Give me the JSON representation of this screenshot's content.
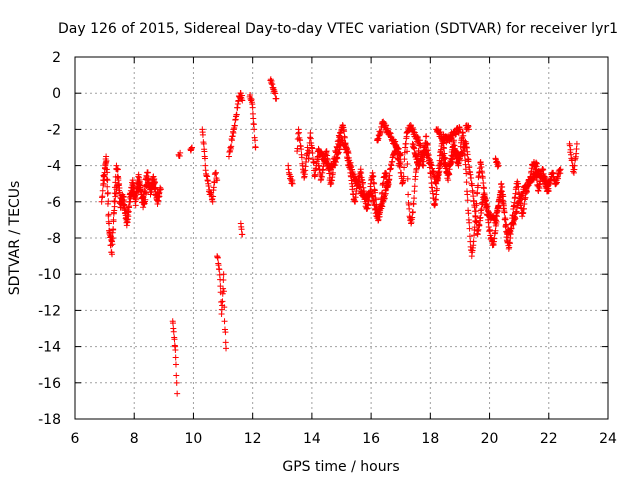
{
  "chart_data": {
    "type": "scatter",
    "title": "Day 126 of 2015, Sidereal Day-to-day VTEC variation (SDTVAR) for receiver lyr1",
    "xlabel": "GPS time / hours",
    "ylabel": "SDTVAR / TECUs",
    "xlim": [
      6,
      24
    ],
    "ylim": [
      -18,
      2
    ],
    "xticks": [
      6,
      8,
      10,
      12,
      14,
      16,
      18,
      20,
      22,
      24
    ],
    "yticks": [
      2,
      0,
      -2,
      -4,
      -6,
      -8,
      -10,
      -12,
      -14,
      -16,
      -18
    ],
    "grid": true,
    "marker": "+",
    "color": "#ff0000",
    "segments": [
      {
        "x": [
          6.9,
          7.0,
          7.05,
          7.1,
          7.15,
          7.2,
          7.25,
          7.3,
          7.35,
          7.4,
          7.45,
          7.5,
          7.55,
          7.6,
          7.65,
          7.7,
          7.75,
          7.8,
          7.85,
          7.9,
          7.95,
          8.0,
          8.05,
          8.1,
          8.15,
          8.2,
          8.25,
          8.3,
          8.35,
          8.4,
          8.45,
          8.5,
          8.55,
          8.6,
          8.65,
          8.7,
          8.75,
          8.8,
          8.85,
          8.9
        ],
        "y": [
          -6.0,
          -4.5,
          -3.5,
          -4.8,
          -7.2,
          -8.4,
          -8.9,
          -7.0,
          -5.2,
          -4.0,
          -4.2,
          -6.0,
          -6.3,
          -5.6,
          -5.9,
          -6.6,
          -7.3,
          -6.8,
          -5.6,
          -5.2,
          -4.8,
          -5.3,
          -6.2,
          -5.0,
          -4.5,
          -5.1,
          -5.8,
          -6.3,
          -5.4,
          -4.7,
          -4.4,
          -5.0,
          -5.6,
          -5.2,
          -4.9,
          -5.3,
          -5.8,
          -6.0,
          -5.5,
          -5.3
        ]
      },
      {
        "x": [
          6.95,
          7.05,
          7.15,
          7.25,
          7.35,
          7.45,
          7.55,
          7.65,
          7.75,
          7.85,
          7.95,
          8.05,
          8.15,
          8.25,
          8.35,
          8.45,
          8.55,
          8.65,
          8.75,
          8.85
        ],
        "y": [
          -4.8,
          -3.8,
          -7.6,
          -8.2,
          -6.0,
          -4.6,
          -5.8,
          -6.2,
          -7.0,
          -6.0,
          -5.4,
          -5.8,
          -4.9,
          -5.6,
          -6.1,
          -4.8,
          -5.3,
          -4.6,
          -5.6,
          -5.7
        ]
      },
      {
        "x": [
          9.3,
          9.32,
          9.35,
          9.38,
          9.4,
          9.42,
          9.45
        ],
        "y": [
          -12.6,
          -13.0,
          -13.5,
          -14.0,
          -14.6,
          -15.6,
          -16.6
        ]
      },
      {
        "x": [
          9.5,
          9.55,
          9.9,
          9.95
        ],
        "y": [
          -3.4,
          -3.3,
          -3.1,
          -3.0
        ]
      },
      {
        "x": [
          10.3,
          10.32,
          10.35,
          10.38,
          10.4,
          10.45,
          10.5,
          10.55,
          10.6,
          10.65,
          10.7,
          10.75,
          10.8
        ],
        "y": [
          -2.0,
          -2.3,
          -2.8,
          -3.5,
          -4.0,
          -4.6,
          -5.0,
          -5.6,
          -5.5,
          -6.0,
          -4.9,
          -4.4,
          -4.8
        ]
      },
      {
        "x": [
          10.8,
          10.85,
          10.9,
          10.92,
          10.95,
          10.98,
          11.0,
          11.02,
          11.05,
          11.08,
          11.1
        ],
        "y": [
          -9.0,
          -9.5,
          -10.3,
          -11.0,
          -12.2,
          -11.5,
          -10.8,
          -10.0,
          -12.6,
          -13.2,
          -14.1
        ]
      },
      {
        "x": [
          11.2,
          11.25,
          11.3,
          11.35,
          11.4,
          11.45,
          11.5,
          11.55,
          11.6,
          11.65
        ],
        "y": [
          -3.5,
          -3.0,
          -2.6,
          -2.2,
          -1.8,
          -1.2,
          -0.6,
          -0.2,
          0.0,
          -0.4
        ]
      },
      {
        "x": [
          11.6,
          11.65
        ],
        "y": [
          -7.2,
          -7.8
        ]
      },
      {
        "x": [
          11.9,
          11.95,
          12.0,
          12.02,
          12.05,
          12.08,
          12.1
        ],
        "y": [
          -0.2,
          -0.4,
          -0.8,
          -1.4,
          -2.0,
          -2.6,
          -3.0
        ]
      },
      {
        "x": [
          12.6,
          12.65,
          12.7,
          12.75,
          12.8
        ],
        "y": [
          0.7,
          0.5,
          0.3,
          0.0,
          -0.3
        ]
      },
      {
        "x": [
          13.2,
          13.25,
          13.3,
          13.35
        ],
        "y": [
          -4.0,
          -4.5,
          -4.8,
          -5.0
        ]
      },
      {
        "x": [
          13.5,
          13.55,
          13.6,
          13.65,
          13.7,
          13.75,
          13.8,
          13.85,
          13.9,
          13.95,
          14.0,
          14.05,
          14.1,
          14.15,
          14.2,
          14.25,
          14.3,
          14.35,
          14.4,
          14.45,
          14.5,
          14.55,
          14.6,
          14.65,
          14.7,
          14.75,
          14.8,
          14.85,
          14.9,
          14.95,
          15.0,
          15.05,
          15.1,
          15.15,
          15.2,
          15.25,
          15.3,
          15.35,
          15.4,
          15.45,
          15.5,
          15.55,
          15.6,
          15.65,
          15.7,
          15.75,
          15.8,
          15.85,
          15.9,
          15.95,
          16.0,
          16.05,
          16.1,
          16.15,
          16.2,
          16.25,
          16.3,
          16.35,
          16.4,
          16.45,
          16.5,
          16.55,
          16.6,
          16.65,
          16.7,
          16.75,
          16.8,
          16.85,
          16.9,
          16.95,
          17.0
        ],
        "y": [
          -3.2,
          -2.0,
          -2.6,
          -3.4,
          -4.2,
          -4.6,
          -3.8,
          -3.0,
          -3.6,
          -2.2,
          -3.0,
          -3.8,
          -4.6,
          -4.0,
          -3.5,
          -4.2,
          -4.8,
          -4.4,
          -3.9,
          -3.6,
          -3.2,
          -4.0,
          -4.8,
          -5.0,
          -4.5,
          -3.6,
          -3.2,
          -3.0,
          -2.6,
          -2.2,
          -2.0,
          -1.8,
          -2.4,
          -3.0,
          -3.6,
          -4.0,
          -4.4,
          -5.0,
          -5.6,
          -6.0,
          -5.4,
          -5.0,
          -4.6,
          -4.2,
          -4.8,
          -5.4,
          -6.0,
          -6.4,
          -6.2,
          -5.6,
          -4.8,
          -4.4,
          -5.0,
          -5.8,
          -6.6,
          -7.0,
          -6.6,
          -5.8,
          -5.0,
          -4.6,
          -4.4,
          -5.2,
          -4.8,
          -4.2,
          -3.8,
          -3.4,
          -3.2,
          -3.0,
          -3.6,
          -4.0,
          -3.8
        ]
      },
      {
        "x": [
          14.2,
          14.4,
          14.6,
          14.8,
          15.0,
          15.2,
          15.4,
          15.6,
          15.8,
          16.0,
          16.2,
          16.4,
          16.6
        ],
        "y": [
          -3.2,
          -3.6,
          -4.2,
          -3.8,
          -2.6,
          -3.2,
          -4.6,
          -5.2,
          -5.8,
          -5.4,
          -6.8,
          -6.0,
          -4.8
        ]
      },
      {
        "x": [
          16.2,
          16.4,
          16.6,
          16.8,
          17.0
        ],
        "y": [
          -2.6,
          -1.6,
          -2.2,
          -2.8,
          -3.4
        ]
      },
      {
        "x": [
          17.0,
          17.05,
          17.1,
          17.15,
          17.2,
          17.25,
          17.3,
          17.35,
          17.4,
          17.45,
          17.5,
          17.55,
          17.6,
          17.65,
          17.7,
          17.75,
          17.8,
          17.85,
          17.9,
          17.95,
          18.0,
          18.05,
          18.1,
          18.15,
          18.2,
          18.25,
          18.3,
          18.35,
          18.4,
          18.45,
          18.5,
          18.55,
          18.6,
          18.65,
          18.7,
          18.75,
          18.8,
          18.85,
          18.9,
          18.95,
          19.0,
          19.05,
          19.1,
          19.15,
          19.2,
          19.25,
          19.3,
          19.35,
          19.4,
          19.45,
          19.5,
          19.55,
          19.6,
          19.65,
          19.7,
          19.75,
          19.8,
          19.85,
          19.9,
          19.95,
          20.0,
          20.05,
          20.1,
          20.15,
          20.2,
          20.25,
          20.3,
          20.35,
          20.4,
          20.45,
          20.5,
          20.55,
          20.6,
          20.65,
          20.7,
          20.75,
          20.8,
          20.85,
          20.9,
          20.95,
          21.0,
          21.05,
          21.1,
          21.15,
          21.2,
          21.25,
          21.3,
          21.35,
          21.4,
          21.45,
          21.5,
          21.55,
          21.6,
          21.65,
          21.7,
          21.75,
          21.8,
          21.85,
          21.9,
          21.95,
          22.0,
          22.05,
          22.1,
          22.15,
          22.2,
          22.25,
          22.3,
          22.35,
          22.4
        ],
        "y": [
          -4.4,
          -5.0,
          -4.6,
          -3.0,
          -2.4,
          -5.6,
          -6.8,
          -7.2,
          -6.6,
          -5.8,
          -4.6,
          -3.8,
          -3.2,
          -2.6,
          -3.4,
          -4.0,
          -3.4,
          -2.4,
          -2.8,
          -3.6,
          -4.4,
          -5.2,
          -5.8,
          -6.2,
          -5.6,
          -4.8,
          -4.0,
          -3.2,
          -2.6,
          -3.0,
          -3.6,
          -4.4,
          -4.8,
          -4.2,
          -3.6,
          -3.0,
          -2.6,
          -3.2,
          -3.8,
          -4.0,
          -3.4,
          -2.6,
          -2.2,
          -3.0,
          -4.2,
          -5.6,
          -7.0,
          -8.2,
          -9.0,
          -8.4,
          -7.4,
          -6.2,
          -5.2,
          -4.4,
          -3.8,
          -4.4,
          -5.2,
          -5.8,
          -6.4,
          -7.0,
          -7.6,
          -8.0,
          -8.4,
          -8.2,
          -7.6,
          -6.8,
          -6.2,
          -5.6,
          -5.0,
          -5.6,
          -6.6,
          -7.4,
          -8.2,
          -8.6,
          -8.0,
          -7.2,
          -6.4,
          -5.8,
          -5.2,
          -5.0,
          -5.6,
          -6.2,
          -6.8,
          -6.4,
          -5.8,
          -5.4,
          -5.0,
          -4.8,
          -4.4,
          -4.0,
          -3.8,
          -4.2,
          -4.8,
          -5.4,
          -5.0,
          -4.6,
          -4.2,
          -4.6,
          -5.0,
          -5.4,
          -5.0,
          -4.8,
          -4.6,
          -4.4,
          -4.8,
          -5.0,
          -4.6,
          -4.4,
          -4.2
        ]
      },
      {
        "x": [
          17.4,
          17.6,
          17.8,
          18.0,
          18.2,
          18.4,
          18.6,
          18.8,
          19.0,
          19.2,
          19.4,
          19.6,
          19.8,
          20.0,
          20.2,
          20.4,
          20.6,
          20.8,
          21.0,
          21.2,
          21.4,
          21.6,
          21.8,
          22.0
        ],
        "y": [
          -2.8,
          -4.0,
          -3.0,
          -3.8,
          -5.0,
          -3.4,
          -4.4,
          -3.2,
          -3.6,
          -2.8,
          -5.0,
          -7.8,
          -5.6,
          -6.8,
          -7.0,
          -5.4,
          -7.8,
          -7.2,
          -6.0,
          -5.2,
          -4.8,
          -4.4,
          -4.6,
          -5.4
        ]
      },
      {
        "x": [
          17.2,
          17.3,
          17.4,
          17.5,
          17.6
        ],
        "y": [
          -2.2,
          -1.8,
          -2.0,
          -2.4,
          -2.6
        ]
      },
      {
        "x": [
          18.2,
          18.3,
          18.4,
          18.6,
          18.8,
          19.0
        ],
        "y": [
          -2.0,
          -2.2,
          -2.4,
          -2.6,
          -2.2,
          -2.0
        ]
      },
      {
        "x": [
          19.2,
          19.25,
          19.3
        ],
        "y": [
          -1.8,
          -1.9,
          -2.0
        ]
      },
      {
        "x": [
          20.2,
          20.25,
          20.3
        ],
        "y": [
          -3.6,
          -3.8,
          -4.0
        ]
      },
      {
        "x": [
          21.5,
          21.55,
          21.6
        ],
        "y": [
          -3.8,
          -4.0,
          -3.9
        ]
      },
      {
        "x": [
          22.7,
          22.75,
          22.8,
          22.85,
          22.9,
          22.95
        ],
        "y": [
          -2.8,
          -3.4,
          -4.0,
          -4.4,
          -3.6,
          -2.8
        ]
      }
    ]
  }
}
